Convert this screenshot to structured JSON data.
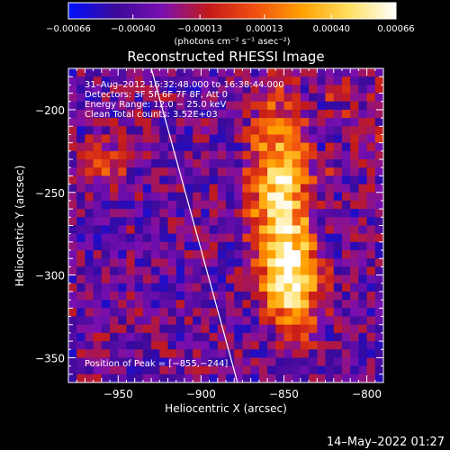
{
  "chart_data": {
    "type": "heatmap",
    "title": "Reconstructed RHESSI Image",
    "xlabel": "Heliocentric X (arcsec)",
    "ylabel": "Heliocentric Y (arcsec)",
    "xlim": [
      -980,
      -790
    ],
    "ylim": [
      -365,
      -175
    ],
    "x_ticks": [
      -950,
      -900,
      -850,
      -800
    ],
    "x_tick_labels": [
      "−950",
      "−900",
      "−850",
      "−800"
    ],
    "y_ticks": [
      -200,
      -250,
      -300,
      -350
    ],
    "y_tick_labels": [
      "−200",
      "−250",
      "−300",
      "−350"
    ],
    "colorbar": {
      "min": -0.00066,
      "max": 0.00066,
      "ticks": [
        -0.00066,
        -0.0004,
        -0.00013,
        0.00013,
        0.0004,
        0.00066
      ],
      "tick_labels": [
        "−0.00066",
        "−0.00040",
        "−0.00013",
        "0.00013",
        "0.00040",
        "0.00066"
      ],
      "unit_label": "(photons cm⁻² s⁻¹ asec⁻²)",
      "colors": [
        "#0010ff",
        "#3a0a9a",
        "#7a0fb0",
        "#c41a1a",
        "#f05010",
        "#ffa000",
        "#ffe060",
        "#ffffff"
      ]
    },
    "annotations": [
      "31–Aug–2012 16:32:48.000 to 16:38:44.000",
      "Detectors: 3F 5F 6F 7F 8F, Att 0",
      "Energy Range: 12.0 − 25.0 keV",
      "Clean      Total counts: 3.52E+03"
    ],
    "peak_label": "Position of Peak = [−855,−244]",
    "limb_line": {
      "x": [
        -930,
        -878
      ],
      "y": [
        -175,
        -365
      ],
      "color": "#ffffff"
    },
    "grid": false,
    "legend": "none",
    "timestamp": "14–May–2022 01:27"
  }
}
